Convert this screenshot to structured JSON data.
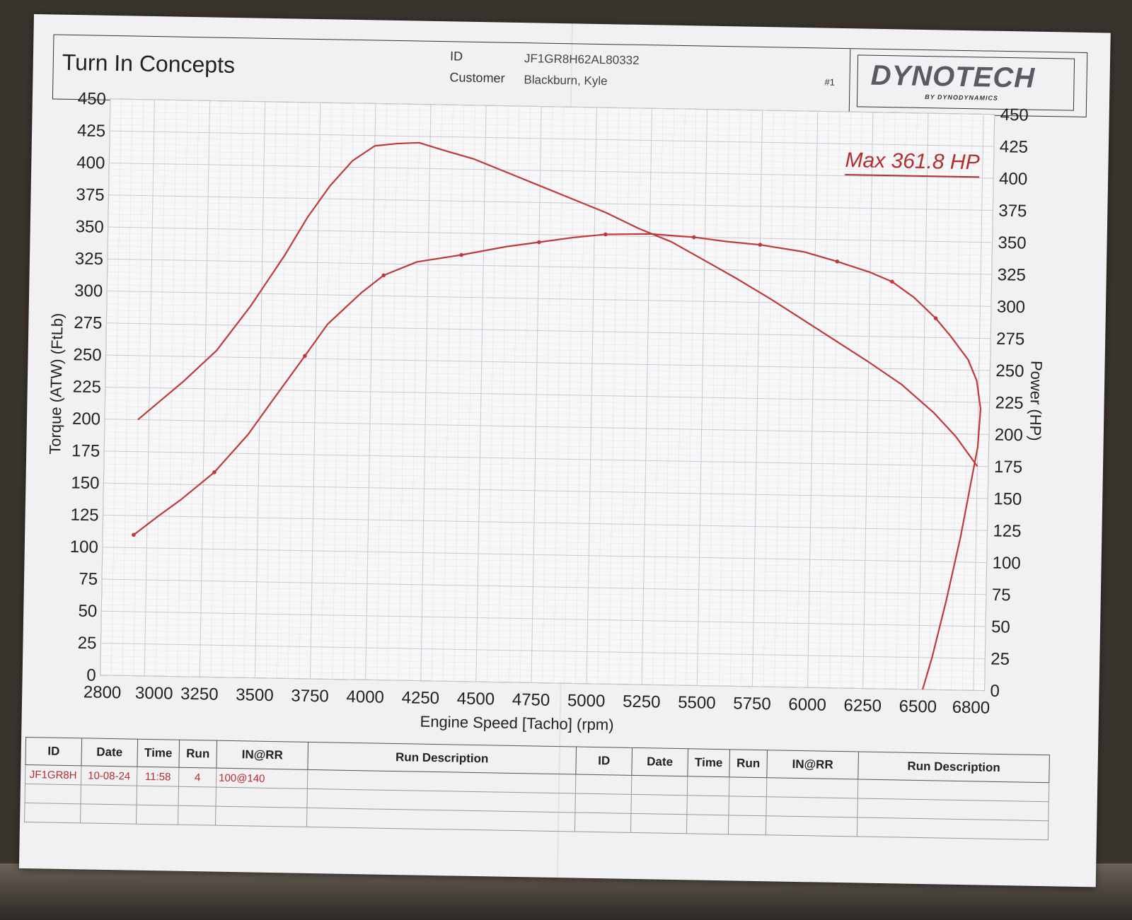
{
  "header": {
    "company": "Turn In Concepts",
    "id_label": "ID",
    "id_value": "JF1GR8H62AL80332",
    "customer_label": "Customer",
    "customer_value": "Blackburn, Kyle",
    "run_number": "#1",
    "logo_text": "DYNOTECH",
    "logo_sub": "BY DYNODYNAMICS"
  },
  "max_label": "Max 361.8 HP",
  "colors": {
    "curve": "#c0393b",
    "grid": "#d4d4d8",
    "paper": "#f1f0f3"
  },
  "chart_data": {
    "type": "line",
    "xlabel": "Engine Speed [Tacho] (rpm)",
    "ylabel_left": "Torque (ATW) (FtLb)",
    "ylabel_right": "Power (HP)",
    "xlim": [
      2800,
      6800
    ],
    "ylim_left": [
      0,
      450
    ],
    "ylim_right": [
      0,
      450
    ],
    "x_ticks": [
      2800,
      3000,
      3250,
      3500,
      3750,
      4000,
      4250,
      4500,
      4750,
      5000,
      5250,
      5500,
      5750,
      6000,
      6250,
      6500,
      6800
    ],
    "y_ticks": [
      0,
      25,
      50,
      75,
      100,
      125,
      150,
      175,
      200,
      225,
      250,
      275,
      300,
      325,
      350,
      375,
      400,
      425,
      450
    ],
    "grid": true,
    "series": [
      {
        "axis": "left",
        "x": [
          2950,
          3050,
          3150,
          3300,
          3450,
          3600,
          3700,
          3800,
          3900,
          4000,
          4100,
          4200,
          4300,
          4450,
          4600,
          4750,
          4900,
          5050,
          5200,
          5350,
          5500,
          5650,
          5800,
          5950,
          6100,
          6250,
          6400,
          6550,
          6650,
          6750
        ],
        "y": [
          200,
          215,
          230,
          255,
          290,
          330,
          360,
          385,
          405,
          417,
          419,
          420,
          415,
          408,
          398,
          388,
          378,
          368,
          356,
          346,
          332,
          318,
          303,
          287,
          271,
          255,
          238,
          216,
          198,
          175
        ]
      },
      {
        "axis": "right",
        "x": [
          2940,
          3050,
          3150,
          3300,
          3450,
          3550,
          3700,
          3800,
          3950,
          4050,
          4200,
          4400,
          4600,
          4750,
          4900,
          5050,
          5250,
          5450,
          5600,
          5750,
          5950,
          6100,
          6250,
          6350,
          6450,
          6550,
          6620,
          6700,
          6740,
          6760,
          6750,
          6720,
          6680,
          6620,
          6560,
          6520
        ],
        "y": [
          110,
          125,
          138,
          160,
          190,
          215,
          252,
          277,
          302,
          316,
          327,
          333,
          340,
          344,
          348,
          351,
          352,
          350,
          347,
          345,
          340,
          333,
          325,
          318,
          306,
          290,
          276,
          258,
          242,
          220,
          190,
          160,
          120,
          70,
          25,
          0
        ]
      }
    ]
  },
  "table": {
    "headers": [
      "ID",
      "Date",
      "Time",
      "Run",
      "IN@RR",
      "Run Description",
      "ID",
      "Date",
      "Time",
      "Run",
      "IN@RR",
      "Run Description"
    ],
    "rows": [
      [
        "JF1GR8H",
        "10-08-24",
        "11:58",
        "4",
        "100@140",
        "",
        "",
        "",
        "",
        "",
        "",
        ""
      ],
      [
        "",
        "",
        "",
        "",
        "",
        "",
        "",
        "",
        "",
        "",
        "",
        ""
      ],
      [
        "",
        "",
        "",
        "",
        "",
        "",
        "",
        "",
        "",
        "",
        "",
        ""
      ]
    ]
  }
}
